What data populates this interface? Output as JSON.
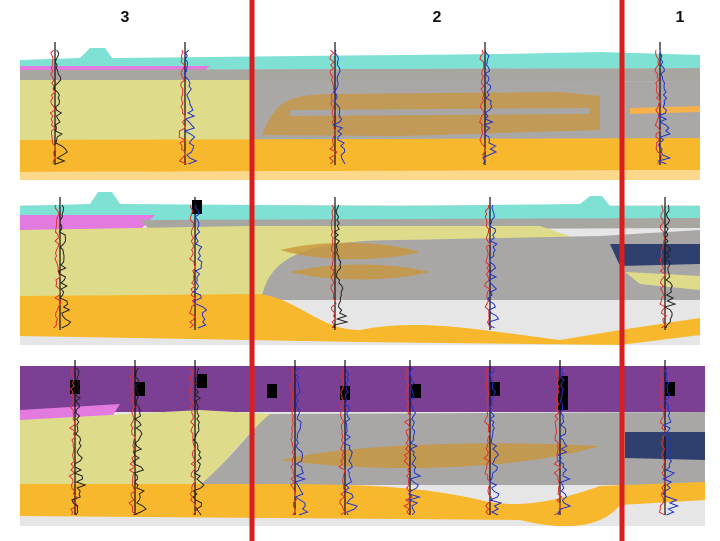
{
  "zones": [
    "3",
    "2",
    "1"
  ]
}
